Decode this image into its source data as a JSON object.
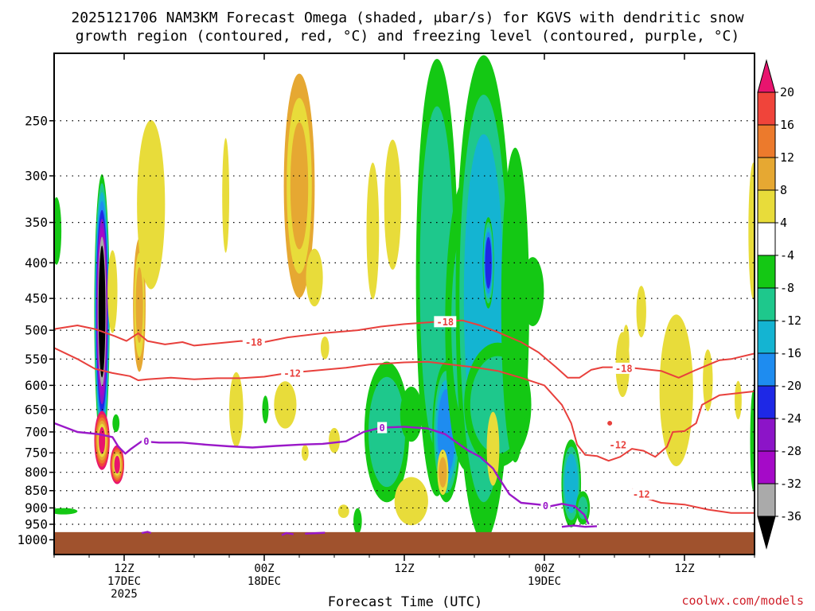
{
  "title": {
    "line1": "2025121706 NAM3KM Forecast Omega (shaded, μbar/s) for KGVS with dendritic snow",
    "line2": "growth region (contoured, red, °C) and freezing level (contoured, purple, °C)"
  },
  "credit": "coolwx.com/models",
  "chart_data": {
    "type": "time-height cross section",
    "xlabel": "Forecast Time (UTC)",
    "ylabel": "",
    "x_ticks": [
      {
        "hour": 6,
        "lines": [
          "12Z",
          "17DEC",
          "2025"
        ]
      },
      {
        "hour": 18,
        "lines": [
          "00Z",
          "18DEC"
        ]
      },
      {
        "hour": 30,
        "lines": [
          "12Z"
        ]
      },
      {
        "hour": 42,
        "lines": [
          "00Z",
          "19DEC"
        ]
      },
      {
        "hour": 54,
        "lines": [
          "12Z"
        ]
      }
    ],
    "x_range_hours": [
      0,
      60
    ],
    "y_scale": "log-pressure",
    "y_range_hpa": [
      1050,
      200
    ],
    "y_ticks_hpa": [
      250,
      300,
      350,
      400,
      450,
      500,
      550,
      600,
      650,
      700,
      750,
      800,
      850,
      900,
      950,
      1000
    ],
    "y_tick_labels": [
      "250",
      "300",
      "350",
      "400",
      "450",
      "500",
      "550",
      "600",
      "650",
      "700",
      "750",
      "800",
      "850",
      "900",
      "950",
      "1000"
    ],
    "grid": "dotted, horizontal at each pressure tick",
    "surface_pressure_hpa": 975,
    "colorbar": {
      "labels": [
        "20",
        "16",
        "12",
        "8",
        "4",
        "-4",
        "-8",
        "-12",
        "-16",
        "-20",
        "-24",
        "-28",
        "-32",
        "-36"
      ],
      "bins": [
        {
          "range": [
            20,
            99
          ],
          "color": "#e8146e"
        },
        {
          "range": [
            16,
            20
          ],
          "color": "#f0443a"
        },
        {
          "range": [
            12,
            16
          ],
          "color": "#ec7a2c"
        },
        {
          "range": [
            8,
            12
          ],
          "color": "#e6a832"
        },
        {
          "range": [
            4,
            8
          ],
          "color": "#e8dc3a"
        },
        {
          "range": [
            -4,
            4
          ],
          "color": "#ffffff"
        },
        {
          "range": [
            -8,
            -4
          ],
          "color": "#14c814"
        },
        {
          "range": [
            -12,
            -8
          ],
          "color": "#1ec88c"
        },
        {
          "range": [
            -16,
            -12
          ],
          "color": "#14b4d2"
        },
        {
          "range": [
            -20,
            -16
          ],
          "color": "#1e8cf0"
        },
        {
          "range": [
            -24,
            -20
          ],
          "color": "#1e28e6"
        },
        {
          "range": [
            -28,
            -24
          ],
          "color": "#8c14c8"
        },
        {
          "range": [
            -32,
            -28
          ],
          "color": "#a50ac8"
        },
        {
          "range": [
            -36,
            -32
          ],
          "color": "#aaaaaa"
        },
        {
          "range": [
            -99,
            -36
          ],
          "color": "#000000"
        }
      ]
    },
    "colors": {
      "dgz_contour": "#e8403c",
      "freezing_contour": "#9a18c8",
      "ground": "#a0522d"
    },
    "omega_cells": [
      {
        "t": 0.2,
        "p": 360,
        "dt": 0.35,
        "dp": 40,
        "peak": -7
      },
      {
        "t": 0.8,
        "p": 910,
        "dt": 1.0,
        "dp": 8,
        "peak": -6
      },
      {
        "t": 4.1,
        "p": 470,
        "dt": 0.55,
        "dp": 200,
        "peak": -40
      },
      {
        "t": 4.1,
        "p": 720,
        "dt": 0.55,
        "dp": 70,
        "peak": 22
      },
      {
        "t": 5.4,
        "p": 780,
        "dt": 0.5,
        "dp": 50,
        "peak": 21
      },
      {
        "t": 5.0,
        "p": 440,
        "dt": 0.35,
        "dp": 60,
        "peak": 6
      },
      {
        "t": 7.3,
        "p": 460,
        "dt": 0.45,
        "dp": 100,
        "peak": 9
      },
      {
        "t": 5.3,
        "p": 680,
        "dt": 0.25,
        "dp": 20,
        "peak": -6
      },
      {
        "t": 8.3,
        "p": 330,
        "dt": 1.0,
        "dp": 90,
        "peak": 6
      },
      {
        "t": 14.7,
        "p": 320,
        "dt": 0.25,
        "dp": 60,
        "peak": 5
      },
      {
        "t": 21.0,
        "p": 310,
        "dt": 1.1,
        "dp": 110,
        "peak": 9
      },
      {
        "t": 22.3,
        "p": 420,
        "dt": 0.6,
        "dp": 40,
        "peak": 5
      },
      {
        "t": 15.6,
        "p": 650,
        "dt": 0.5,
        "dp": 80,
        "peak": 6
      },
      {
        "t": 18.1,
        "p": 650,
        "dt": 0.15,
        "dp": 30,
        "peak": -6
      },
      {
        "t": 19.8,
        "p": 640,
        "dt": 0.8,
        "dp": 50,
        "peak": 5
      },
      {
        "t": 21.5,
        "p": 750,
        "dt": 0.25,
        "dp": 20,
        "peak": 5
      },
      {
        "t": 23.2,
        "p": 530,
        "dt": 0.3,
        "dp": 20,
        "peak": 5
      },
      {
        "t": 24.0,
        "p": 720,
        "dt": 0.4,
        "dp": 30,
        "peak": 5
      },
      {
        "t": 24.8,
        "p": 910,
        "dt": 0.4,
        "dp": 20,
        "peak": 5
      },
      {
        "t": 26.0,
        "p": 940,
        "dt": 0.3,
        "dp": 40,
        "peak": -6
      },
      {
        "t": 27.3,
        "p": 360,
        "dt": 0.45,
        "dp": 80,
        "peak": 6
      },
      {
        "t": 29.0,
        "p": 330,
        "dt": 0.6,
        "dp": 70,
        "peak": 6
      },
      {
        "t": 28.5,
        "p": 700,
        "dt": 1.6,
        "dp": 160,
        "peak": -9
      },
      {
        "t": 30.6,
        "p": 660,
        "dt": 0.8,
        "dp": 60,
        "peak": -7
      },
      {
        "t": 30.6,
        "p": 880,
        "dt": 1.2,
        "dp": 70,
        "peak": 6
      },
      {
        "t": 32.8,
        "p": 420,
        "dt": 1.5,
        "dp": 260,
        "peak": -11
      },
      {
        "t": 33.6,
        "p": 700,
        "dt": 1.0,
        "dp": 160,
        "peak": -18
      },
      {
        "t": 33.3,
        "p": 800,
        "dt": 0.4,
        "dp": 60,
        "peak": 8
      },
      {
        "t": 35.3,
        "p": 490,
        "dt": 1.5,
        "dp": 220,
        "peak": -8
      },
      {
        "t": 35.6,
        "p": 720,
        "dt": 0.55,
        "dp": 100,
        "peak": 22
      },
      {
        "t": 36.8,
        "p": 450,
        "dt": 2.0,
        "dp": 300,
        "peak": -14
      },
      {
        "t": 37.2,
        "p": 400,
        "dt": 0.4,
        "dp": 60,
        "peak": -22
      },
      {
        "t": 38.0,
        "p": 640,
        "dt": 2.4,
        "dp": 130,
        "peak": -10
      },
      {
        "t": 37.6,
        "p": 740,
        "dt": 0.45,
        "dp": 90,
        "peak": 6
      },
      {
        "t": 39.5,
        "p": 460,
        "dt": 1.0,
        "dp": 220,
        "peak": -7
      },
      {
        "t": 41.0,
        "p": 440,
        "dt": 0.8,
        "dp": 50,
        "peak": -6
      },
      {
        "t": 44.3,
        "p": 830,
        "dt": 0.7,
        "dp": 120,
        "peak": -13
      },
      {
        "t": 45.3,
        "p": 900,
        "dt": 0.5,
        "dp": 50,
        "peak": -8
      },
      {
        "t": 48.7,
        "p": 560,
        "dt": 0.5,
        "dp": 60,
        "peak": 6
      },
      {
        "t": 49.0,
        "p": 520,
        "dt": 0.2,
        "dp": 30,
        "peak": 5
      },
      {
        "t": 50.3,
        "p": 470,
        "dt": 0.35,
        "dp": 40,
        "peak": 5
      },
      {
        "t": 53.3,
        "p": 610,
        "dt": 1.2,
        "dp": 150,
        "peak": 6
      },
      {
        "t": 56.0,
        "p": 590,
        "dt": 0.35,
        "dp": 60,
        "peak": 5
      },
      {
        "t": 58.6,
        "p": 630,
        "dt": 0.25,
        "dp": 40,
        "peak": 5
      },
      {
        "t": 59.9,
        "p": 360,
        "dt": 0.35,
        "dp": 80,
        "peak": 6
      },
      {
        "t": 59.9,
        "p": 720,
        "dt": 0.2,
        "dp": 120,
        "peak": -6
      }
    ],
    "contours": [
      {
        "name": "-18",
        "kind": "dgz",
        "points": [
          [
            0,
            498
          ],
          [
            2,
            492
          ],
          [
            3.5,
            498
          ],
          [
            5.2,
            510
          ],
          [
            6.2,
            518
          ],
          [
            7.2,
            505
          ],
          [
            8,
            518
          ],
          [
            9.5,
            524
          ],
          [
            11,
            520
          ],
          [
            12,
            526
          ],
          [
            14,
            522
          ],
          [
            16,
            518
          ],
          [
            18,
            520
          ],
          [
            20,
            512
          ],
          [
            23,
            505
          ],
          [
            26,
            500
          ],
          [
            28,
            494
          ],
          [
            30,
            490
          ],
          [
            33,
            486
          ],
          [
            35,
            484
          ],
          [
            36.5,
            492
          ],
          [
            38,
            503
          ],
          [
            40,
            520
          ],
          [
            41.5,
            538
          ],
          [
            43,
            565
          ],
          [
            44,
            585
          ],
          [
            45,
            585
          ],
          [
            46,
            570
          ],
          [
            47,
            565
          ],
          [
            49,
            565
          ],
          [
            52,
            572
          ],
          [
            53.5,
            585
          ],
          [
            55,
            570
          ],
          [
            57,
            552
          ],
          [
            58,
            550
          ],
          [
            60,
            540
          ]
        ],
        "labels": [
          {
            "t": 17.1,
            "p": 520,
            "text": "-18"
          },
          {
            "t": 33.5,
            "p": 486,
            "text": "-18"
          },
          {
            "t": 48.8,
            "p": 567,
            "text": "-18"
          }
        ]
      },
      {
        "name": "-12",
        "kind": "dgz",
        "points": [
          [
            0,
            530
          ],
          [
            2,
            550
          ],
          [
            3.5,
            568
          ],
          [
            5,
            576
          ],
          [
            6.5,
            582
          ],
          [
            7.2,
            590
          ],
          [
            8,
            588
          ],
          [
            10,
            585
          ],
          [
            12,
            588
          ],
          [
            14,
            586
          ],
          [
            16,
            586
          ],
          [
            18,
            583
          ],
          [
            20,
            576
          ],
          [
            22,
            572
          ],
          [
            25,
            566
          ],
          [
            27,
            560
          ],
          [
            30,
            556
          ],
          [
            32,
            555
          ],
          [
            34,
            560
          ],
          [
            36,
            565
          ],
          [
            38,
            572
          ],
          [
            40,
            585
          ],
          [
            42,
            600
          ],
          [
            43.5,
            640
          ],
          [
            44.3,
            680
          ],
          [
            44.8,
            730
          ],
          [
            45.5,
            755
          ],
          [
            46.5,
            758
          ],
          [
            47.5,
            770
          ],
          [
            48.5,
            760
          ],
          [
            49.5,
            740
          ],
          [
            50.5,
            745
          ],
          [
            51.5,
            760
          ],
          [
            52.5,
            735
          ],
          [
            53,
            700
          ],
          [
            54,
            698
          ],
          [
            55,
            680
          ],
          [
            55.5,
            640
          ],
          [
            57,
            620
          ],
          [
            60,
            612
          ]
        ],
        "labels": [
          {
            "t": 20.4,
            "p": 576,
            "text": "-12"
          },
          {
            "t": 48.3,
            "p": 730,
            "text": "-12"
          }
        ]
      },
      {
        "name": "-12b",
        "kind": "dgz",
        "points": [
          [
            49.5,
            845
          ],
          [
            50.5,
            870
          ],
          [
            52,
            885
          ],
          [
            54,
            890
          ],
          [
            56,
            905
          ],
          [
            58,
            915
          ],
          [
            60,
            915
          ]
        ],
        "labels": [
          {
            "t": 50.3,
            "p": 860,
            "text": "-12"
          }
        ]
      },
      {
        "name": "-12c",
        "kind": "dgz",
        "points": [
          [
            47.6,
            680
          ],
          [
            47.6,
            688
          ]
        ],
        "labels": []
      },
      {
        "name": "0",
        "kind": "freezing",
        "points": [
          [
            0,
            680
          ],
          [
            2,
            700
          ],
          [
            3.8,
            705
          ],
          [
            5,
            712
          ],
          [
            5.5,
            735
          ],
          [
            6.1,
            752
          ],
          [
            6.6,
            740
          ],
          [
            7.5,
            722
          ],
          [
            9,
            725
          ],
          [
            11,
            725
          ],
          [
            13,
            730
          ],
          [
            15,
            734
          ],
          [
            17,
            737
          ],
          [
            19,
            733
          ],
          [
            21,
            730
          ],
          [
            23,
            728
          ],
          [
            25,
            722
          ],
          [
            26.5,
            700
          ],
          [
            28,
            690
          ],
          [
            30,
            688
          ],
          [
            32,
            692
          ],
          [
            33.5,
            705
          ],
          [
            34.5,
            725
          ],
          [
            35.5,
            745
          ],
          [
            36.5,
            760
          ],
          [
            37.6,
            790
          ],
          [
            38,
            810
          ],
          [
            39,
            860
          ],
          [
            40,
            885
          ],
          [
            41.5,
            890
          ],
          [
            42.5,
            895
          ],
          [
            43.5,
            888
          ],
          [
            44.6,
            895
          ],
          [
            45.4,
            920
          ],
          [
            45.8,
            950
          ]
        ],
        "labels": [
          {
            "t": 7.9,
            "p": 722,
            "text": "0"
          },
          {
            "t": 28.1,
            "p": 690,
            "text": "0"
          },
          {
            "t": 42.1,
            "p": 893,
            "text": "0"
          }
        ]
      },
      {
        "name": "0b",
        "kind": "freezing",
        "points": [
          [
            19.5,
            985
          ],
          [
            19.9,
            978
          ],
          [
            20.5,
            982
          ]
        ],
        "labels": []
      },
      {
        "name": "0c",
        "kind": "freezing",
        "points": [
          [
            21.5,
            980
          ],
          [
            22.7,
            978
          ],
          [
            23.2,
            977
          ]
        ],
        "labels": []
      },
      {
        "name": "0d",
        "kind": "freezing",
        "points": [
          [
            43.5,
            958
          ],
          [
            44.5,
            954
          ],
          [
            45.5,
            958
          ],
          [
            46.5,
            956
          ]
        ],
        "labels": []
      },
      {
        "name": "0e",
        "kind": "freezing",
        "points": [
          [
            7.5,
            978
          ],
          [
            8.0,
            974
          ],
          [
            8.3,
            978
          ]
        ],
        "labels": []
      }
    ]
  }
}
